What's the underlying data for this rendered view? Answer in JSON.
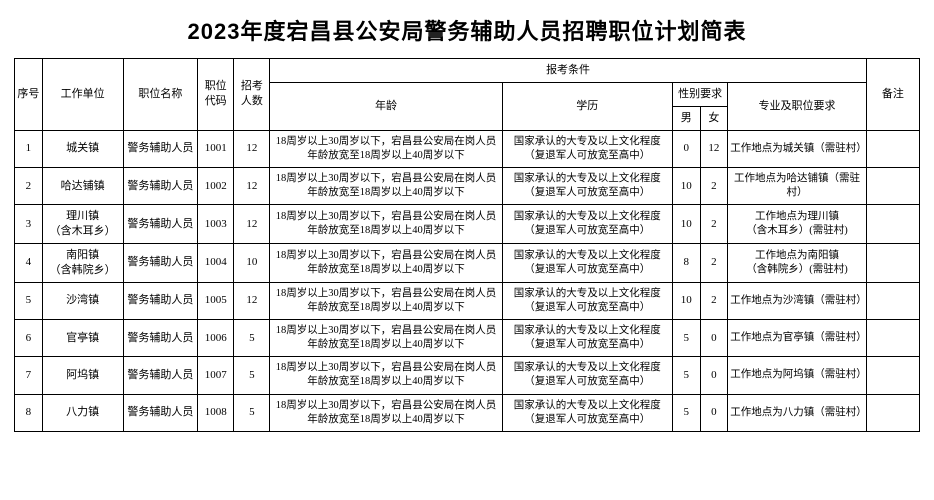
{
  "title": "2023年度宕昌县公安局警务辅助人员招聘职位计划简表",
  "headers": {
    "seq": "序号",
    "unit": "工作单位",
    "position": "职位名称",
    "code": "职位代码",
    "count": "招考人数",
    "conditions": "报考条件",
    "age": "年龄",
    "edu": "学历",
    "gender": "性别要求",
    "male": "男",
    "female": "女",
    "req": "专业及职位要求",
    "remark": "备注"
  },
  "common": {
    "position": "警务辅助人员",
    "age_text": "18周岁以上30周岁以下，宕昌县公安局在岗人员年龄放宽至18周岁以上40周岁以下",
    "edu_text": "国家承认的大专及以上文化程度（复退军人可放宽至高中）"
  },
  "rows": [
    {
      "seq": "1",
      "unit": "城关镇",
      "code": "1001",
      "count": "12",
      "male": "0",
      "female": "12",
      "req": "工作地点为城关镇（需驻村）"
    },
    {
      "seq": "2",
      "unit": "哈达铺镇",
      "code": "1002",
      "count": "12",
      "male": "10",
      "female": "2",
      "req": "工作地点为哈达铺镇（需驻村）"
    },
    {
      "seq": "3",
      "unit": "理川镇\n（含木耳乡）",
      "code": "1003",
      "count": "12",
      "male": "10",
      "female": "2",
      "req": "工作地点为理川镇\n（含木耳乡）(需驻村)"
    },
    {
      "seq": "4",
      "unit": "南阳镇\n（含韩院乡）",
      "code": "1004",
      "count": "10",
      "male": "8",
      "female": "2",
      "req": "工作地点为南阳镇\n（含韩院乡）(需驻村)"
    },
    {
      "seq": "5",
      "unit": "沙湾镇",
      "code": "1005",
      "count": "12",
      "male": "10",
      "female": "2",
      "req": "工作地点为沙湾镇（需驻村）"
    },
    {
      "seq": "6",
      "unit": "官亭镇",
      "code": "1006",
      "count": "5",
      "male": "5",
      "female": "0",
      "req": "工作地点为官亭镇（需驻村）"
    },
    {
      "seq": "7",
      "unit": "阿坞镇",
      "code": "1007",
      "count": "5",
      "male": "5",
      "female": "0",
      "req": "工作地点为阿坞镇（需驻村）"
    },
    {
      "seq": "8",
      "unit": "八力镇",
      "code": "1008",
      "count": "5",
      "male": "5",
      "female": "0",
      "req": "工作地点为八力镇（需驻村）"
    }
  ]
}
